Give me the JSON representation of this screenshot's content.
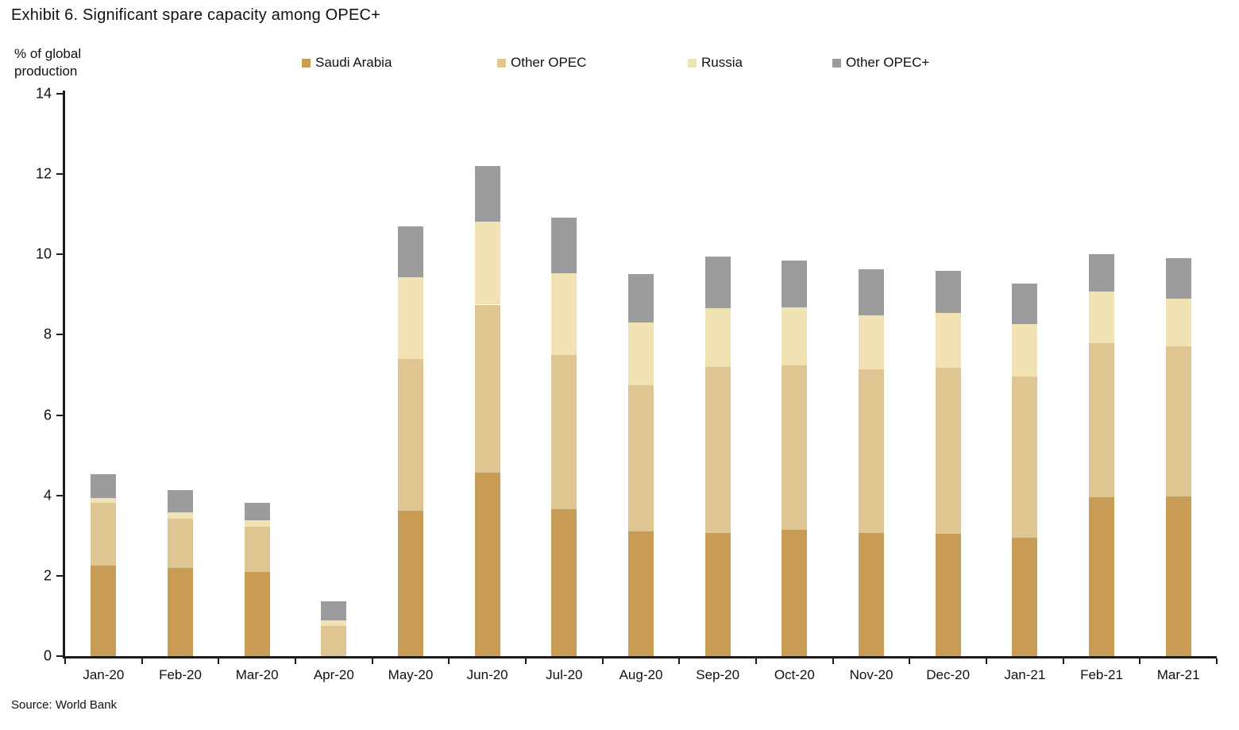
{
  "header": {
    "title": "Exhibit 6. Significant spare capacity among OPEC+"
  },
  "y_axis_title": "% of global production",
  "source": "Source: World Bank",
  "colors": {
    "saudi_arabia": "#c99c55",
    "other_opec": "#dfc592",
    "russia": "#f1e2b3",
    "other_opec_plus": "#9c9c9c",
    "axis": "#1c1c1c",
    "background": "#ffffff"
  },
  "legend": [
    {
      "label": "Saudi Arabia",
      "color": "#c99c55"
    },
    {
      "label": "Other OPEC",
      "color": "#dfc592"
    },
    {
      "label": "Russia",
      "color": "#f1e2b3"
    },
    {
      "label": "Other OPEC+",
      "color": "#9c9c9c"
    }
  ],
  "chart_data": {
    "type": "bar",
    "stacked": true,
    "title": "Exhibit 6. Significant spare capacity among OPEC+",
    "ylabel": "% of global production",
    "xlabel": "",
    "ylim": [
      0,
      14
    ],
    "yticks": [
      0,
      2,
      4,
      6,
      8,
      10,
      12,
      14
    ],
    "grid": false,
    "legend_position": "top",
    "categories": [
      "Jan-20",
      "Feb-20",
      "Mar-20",
      "Apr-20",
      "May-20",
      "Jun-20",
      "Jul-20",
      "Aug-20",
      "Sep-20",
      "Oct-20",
      "Nov-20",
      "Dec-20",
      "Jan-21",
      "Feb-21",
      "Mar-21"
    ],
    "series": [
      {
        "name": "Saudi Arabia",
        "color": "#c99c55",
        "values": [
          2.25,
          2.2,
          2.1,
          0.0,
          3.62,
          4.57,
          3.66,
          3.1,
          3.07,
          3.14,
          3.06,
          3.05,
          2.94,
          3.96,
          3.98
        ]
      },
      {
        "name": "Other OPEC",
        "color": "#dfc592",
        "values": [
          1.57,
          1.22,
          1.13,
          0.75,
          3.78,
          4.18,
          3.84,
          3.64,
          4.12,
          4.09,
          4.08,
          4.12,
          4.03,
          3.84,
          3.73
        ]
      },
      {
        "name": "Russia",
        "color": "#f1e2b3",
        "values": [
          0.11,
          0.16,
          0.15,
          0.13,
          2.03,
          2.06,
          2.04,
          1.57,
          1.48,
          1.45,
          1.35,
          1.37,
          1.29,
          1.28,
          1.19
        ]
      },
      {
        "name": "Other OPEC+",
        "color": "#9c9c9c",
        "values": [
          0.6,
          0.55,
          0.44,
          0.49,
          1.27,
          1.39,
          1.38,
          1.21,
          1.27,
          1.16,
          1.14,
          1.06,
          1.02,
          0.92,
          1.01
        ]
      }
    ],
    "totals": [
      4.53,
      4.13,
      3.82,
      1.37,
      10.7,
      12.2,
      10.92,
      9.52,
      9.94,
      9.84,
      9.63,
      9.6,
      9.28,
      10.0,
      9.91
    ]
  }
}
